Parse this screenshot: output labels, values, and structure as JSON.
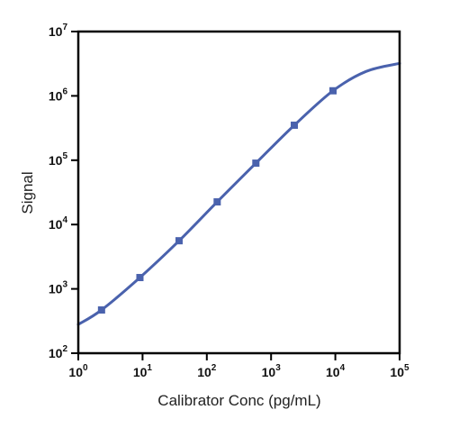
{
  "colors": {
    "series": "#4a62ad",
    "axis": "#000000",
    "background": "#ffffff"
  },
  "chart_data": {
    "type": "line",
    "xlabel": "Calibrator Conc (pg/mL)",
    "ylabel": "Signal",
    "x_scale": "log",
    "y_scale": "log",
    "xlim": [
      1,
      100000
    ],
    "ylim": [
      100,
      10000000
    ],
    "x_ticks": [
      {
        "base": "10",
        "exp": "0",
        "value": 1
      },
      {
        "base": "10",
        "exp": "1",
        "value": 10
      },
      {
        "base": "10",
        "exp": "2",
        "value": 100
      },
      {
        "base": "10",
        "exp": "3",
        "value": 1000
      },
      {
        "base": "10",
        "exp": "4",
        "value": 10000
      },
      {
        "base": "10",
        "exp": "5",
        "value": 100000
      }
    ],
    "y_ticks": [
      {
        "base": "10",
        "exp": "2",
        "value": 100
      },
      {
        "base": "10",
        "exp": "3",
        "value": 1000
      },
      {
        "base": "10",
        "exp": "4",
        "value": 10000
      },
      {
        "base": "10",
        "exp": "5",
        "value": 100000
      },
      {
        "base": "10",
        "exp": "6",
        "value": 1000000
      },
      {
        "base": "10",
        "exp": "7",
        "value": 10000000
      }
    ],
    "grid": false,
    "legend": "none",
    "series": [
      {
        "points": [
          {
            "x": 2.3,
            "y": 470
          },
          {
            "x": 9.1,
            "y": 1500
          },
          {
            "x": 37,
            "y": 5600
          },
          {
            "x": 145,
            "y": 22500
          },
          {
            "x": 580,
            "y": 90000
          },
          {
            "x": 2300,
            "y": 350000
          },
          {
            "x": 9200,
            "y": 1200000
          }
        ],
        "curve": [
          {
            "x": 1,
            "y": 280
          },
          {
            "x": 2.3,
            "y": 470
          },
          {
            "x": 9.1,
            "y": 1500
          },
          {
            "x": 37,
            "y": 5600
          },
          {
            "x": 145,
            "y": 22500
          },
          {
            "x": 580,
            "y": 90000
          },
          {
            "x": 2300,
            "y": 350000
          },
          {
            "x": 9200,
            "y": 1200000
          },
          {
            "x": 30000,
            "y": 2400000
          },
          {
            "x": 100000,
            "y": 3200000
          }
        ]
      }
    ]
  }
}
